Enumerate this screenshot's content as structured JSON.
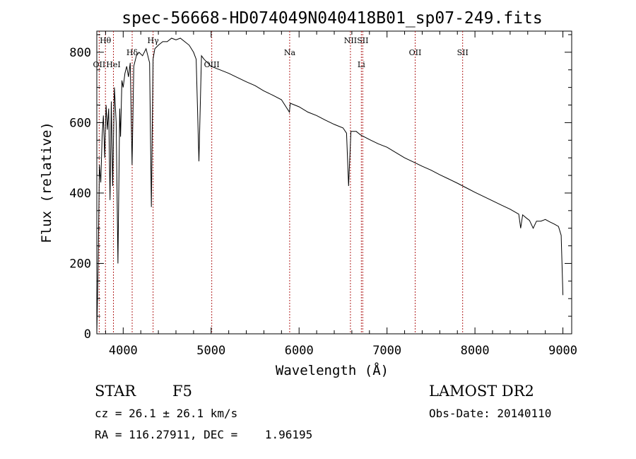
{
  "chart_data": {
    "type": "line",
    "title": "spec-56668-HD074049N040418B01_sp07-249.fits",
    "xlabel": "Wavelength (Å)",
    "ylabel": "Flux (relative)",
    "xlim": [
      3700,
      9100
    ],
    "ylim": [
      0,
      860
    ],
    "x_ticks": [
      4000,
      5000,
      6000,
      7000,
      8000,
      9000
    ],
    "y_ticks": [
      0,
      200,
      400,
      600,
      800
    ],
    "grid": false,
    "legend": "none",
    "series": [
      {
        "values_note_free": true,
        "x": [
          3700,
          3715,
          3730,
          3745,
          3760,
          3775,
          3790,
          3805,
          3820,
          3835,
          3850,
          3865,
          3880,
          3900,
          3920,
          3940,
          3960,
          3970,
          3985,
          4000,
          4020,
          4040,
          4060,
          4080,
          4101,
          4120,
          4150,
          4180,
          4220,
          4260,
          4300,
          4320,
          4340,
          4360,
          4400,
          4450,
          4500,
          4550,
          4600,
          4650,
          4700,
          4750,
          4800,
          4830,
          4861,
          4890,
          4920,
          4960,
          5000,
          5100,
          5200,
          5300,
          5400,
          5500,
          5600,
          5700,
          5800,
          5890,
          5900,
          5950,
          6000,
          6100,
          6200,
          6300,
          6400,
          6500,
          6540,
          6563,
          6590,
          6650,
          6700,
          6800,
          6900,
          7000,
          7100,
          7200,
          7300,
          7400,
          7500,
          7600,
          7700,
          7800,
          7900,
          8000,
          8100,
          8200,
          8300,
          8400,
          8498,
          8520,
          8542,
          8580,
          8620,
          8662,
          8700,
          8750,
          8800,
          8850,
          8900,
          8950,
          8980,
          9000
        ],
        "values": [
          0,
          200,
          480,
          430,
          560,
          620,
          500,
          650,
          580,
          640,
          380,
          660,
          420,
          700,
          600,
          200,
          640,
          560,
          720,
          700,
          740,
          760,
          730,
          770,
          480,
          760,
          790,
          800,
          790,
          810,
          770,
          360,
          780,
          810,
          820,
          830,
          830,
          840,
          835,
          840,
          830,
          820,
          800,
          780,
          490,
          790,
          780,
          770,
          760,
          750,
          740,
          728,
          716,
          705,
          690,
          678,
          665,
          630,
          655,
          650,
          645,
          630,
          620,
          607,
          595,
          585,
          570,
          420,
          575,
          575,
          565,
          552,
          540,
          530,
          515,
          500,
          488,
          476,
          465,
          452,
          440,
          428,
          415,
          402,
          390,
          378,
          366,
          354,
          340,
          300,
          338,
          330,
          322,
          300,
          320,
          320,
          325,
          318,
          312,
          305,
          280,
          110
        ]
      }
    ],
    "line_markers": [
      {
        "label": "OII",
        "x": 3727,
        "row": "lower"
      },
      {
        "label": "Hθ",
        "x": 3798,
        "row": "upper"
      },
      {
        "label": "HeI",
        "x": 3889,
        "row": "lower"
      },
      {
        "label": "Hδ",
        "x": 4102,
        "row": "middle"
      },
      {
        "label": "Hγ",
        "x": 4340,
        "row": "upper"
      },
      {
        "label": "OIII",
        "x": 5007,
        "row": "lower"
      },
      {
        "label": "Na",
        "x": 5893,
        "row": "middle"
      },
      {
        "label": "NII",
        "x": 6584,
        "row": "upper"
      },
      {
        "label": "Li",
        "x": 6708,
        "row": "lower"
      },
      {
        "label": "SII",
        "x": 6724,
        "row": "upper"
      },
      {
        "label": "OII",
        "x": 7320,
        "row": "middle"
      },
      {
        "label": "SII",
        "x": 7860,
        "row": "middle"
      }
    ]
  },
  "info": {
    "object_class": "STAR",
    "subclass": "F5",
    "survey": "LAMOST DR2",
    "redshift_line": "cz = 26.1 ± 26.1 km/s",
    "obs_date": "Obs-Date: 20140110",
    "coords": "RA = 116.27911, DEC =    1.96195"
  }
}
